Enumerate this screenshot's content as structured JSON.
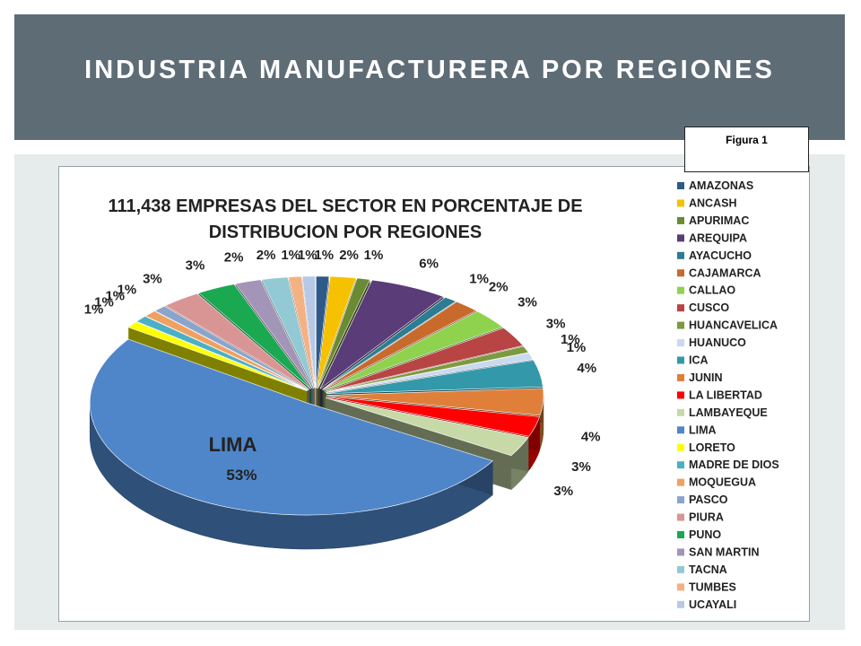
{
  "page": {
    "title": "INDUSTRIA MANUFACTURERA POR REGIONES",
    "figure_label": "Figura 1"
  },
  "chart_data": {
    "type": "pie",
    "title": "111,438 EMPRESAS DEL SECTOR EN PORCENTAJE DE DISTRIBUCION POR REGIONES",
    "title_lines": [
      "111,438 EMPRESAS DEL SECTOR EN PORCENTAJE DE",
      "DISTRIBUCION POR REGIONES"
    ],
    "three_d": true,
    "exploded": true,
    "legend_position": "right",
    "categories": [
      "AMAZONAS",
      "ANCASH",
      "APURIMAC",
      "AREQUIPA",
      "AYACUCHO",
      "CAJAMARCA",
      "CALLAO",
      "CUSCO",
      "HUANCAVELICA",
      "HUANUCO",
      "ICA",
      "JUNIN",
      "LA LIBERTAD",
      "LAMBAYEQUE",
      "LIMA",
      "LORETO",
      "MADRE DE DIOS",
      "MOQUEGUA",
      "PASCO",
      "PIURA",
      "PUNO",
      "SAN MARTIN",
      "TACNA",
      "TUMBES",
      "UCAYALI"
    ],
    "values": [
      1,
      2,
      1,
      6,
      1,
      2,
      3,
      3,
      1,
      1,
      4,
      4,
      3,
      3,
      53,
      1,
      1,
      1,
      1,
      3,
      3,
      2,
      2,
      1,
      1
    ],
    "labels": [
      "1%",
      "2%",
      "1%",
      "6%",
      "1%",
      "2%",
      "3%",
      "3%",
      "1%",
      "1%",
      "4%",
      "4%",
      "3%",
      "3%",
      "53%",
      "1%",
      "1%",
      "1%",
      "1%",
      "3%",
      "3%",
      "2%",
      "2%",
      "1%",
      "1%"
    ],
    "colors": [
      "#2e5a8a",
      "#f6c100",
      "#6a8a34",
      "#5a3c78",
      "#2a7d92",
      "#c86a2c",
      "#8fd24e",
      "#b84444",
      "#7d9a3e",
      "#c9d9f0",
      "#3399aa",
      "#e07f3a",
      "#ff0000",
      "#c8d9a8",
      "#4f86c9",
      "#ffff00",
      "#4ab0c6",
      "#f0a060",
      "#8aa4cc",
      "#d99594",
      "#1aa851",
      "#a295b8",
      "#93c9d4",
      "#f4b183",
      "#b7c9e6"
    ],
    "lima_label": "LIMA"
  }
}
